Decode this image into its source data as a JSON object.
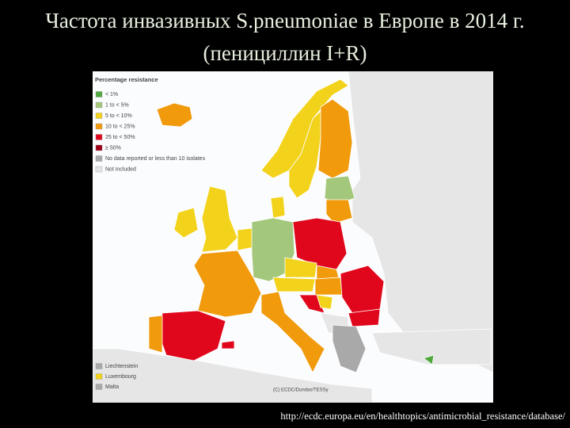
{
  "header": {
    "title": "Частота инвазивных S.pneumoniae в Европе в 2014 г. (пенициллин I+R)"
  },
  "map": {
    "legend": {
      "title": "Percentage resistance",
      "items": [
        {
          "label": "< 1%",
          "color": "#4fa83d"
        },
        {
          "label": "1 to < 5%",
          "color": "#a3c77b"
        },
        {
          "label": "5 to < 10%",
          "color": "#f2d21a"
        },
        {
          "label": "10 to < 25%",
          "color": "#f09a0c"
        },
        {
          "label": "25 to < 50%",
          "color": "#e0061c"
        },
        {
          "label": "≥ 50%",
          "color": "#a0001a"
        },
        {
          "label": "No data reported or less than 10 isolates",
          "color": "#a9a9a9"
        },
        {
          "label": "Not included",
          "color": "#e6e6e6"
        }
      ]
    },
    "inset_legend": [
      {
        "label": "Liechtenstein",
        "color": "#a9a9a9"
      },
      {
        "label": "Luxembourg",
        "color": "#f2d21a"
      },
      {
        "label": "Malta",
        "color": "#a9a9a9"
      }
    ],
    "credit": "(C) ECDC/Dundas/TESSy"
  },
  "footer": {
    "url": "http://ecdc.europa.eu/en/healthtopics/antimicrobial_resistance/database/"
  }
}
